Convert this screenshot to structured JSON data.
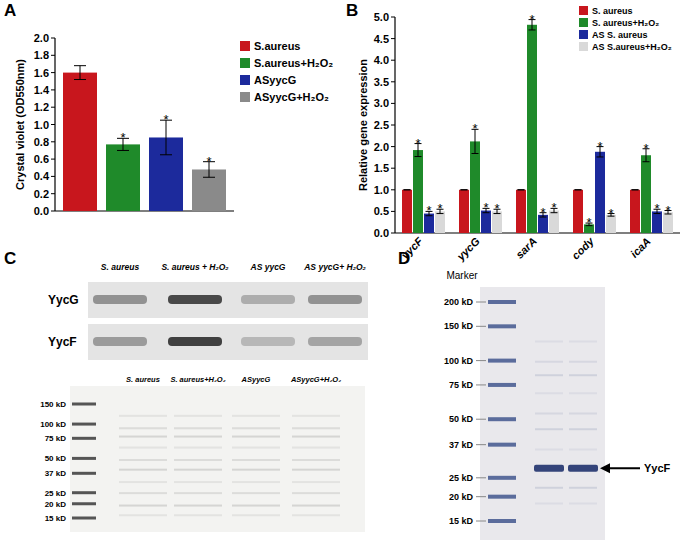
{
  "chart_data": [
    {
      "title": "A",
      "type": "bar",
      "y_label": "Crystal violet (OD550nm)",
      "categories": [
        null
      ],
      "ylim": [
        0,
        2
      ],
      "yticks": [
        {
          "value": 0,
          "label": "0.0"
        },
        0.2,
        0.4,
        0.6,
        0.8,
        {
          "value": 1,
          "label": "1.0"
        },
        1.2,
        1.4,
        1.6,
        1.8,
        {
          "value": 2,
          "label": "2.0"
        }
      ],
      "legend": "right",
      "series": [
        {
          "name": "S.aureus",
          "color": "#c8161d",
          "values": [
            1.6
          ],
          "errors": [
            0.08
          ],
          "annotations": [
            null
          ]
        },
        {
          "name": "S.aureus+H₂O₂",
          "color": "#1f8a2a",
          "values": [
            0.77
          ],
          "errors": [
            0.07
          ],
          "annotations": [
            "*"
          ]
        },
        {
          "name": "ASyycG",
          "color": "#1c2a9c",
          "values": [
            0.85
          ],
          "errors": [
            0.2
          ],
          "annotations": [
            "*"
          ]
        },
        {
          "name": "ASyycG+H₂O₂",
          "color": "#8a8a8a",
          "values": [
            0.48
          ],
          "errors": [
            0.09
          ],
          "annotations": [
            "*"
          ]
        }
      ]
    },
    {
      "title": "B",
      "type": "bar",
      "y_label": "Relative gene expression",
      "categories": [
        "yycF",
        "yycG",
        "sarA",
        "cody",
        "icaA"
      ],
      "ylim": [
        0,
        5
      ],
      "yticks": [
        {
          "value": 0,
          "label": "0.0"
        },
        0.5,
        {
          "value": 1,
          "label": "1.0"
        },
        1.5,
        {
          "value": 2,
          "label": "2.0"
        },
        2.5,
        {
          "value": 3,
          "label": "3.0"
        },
        3.5,
        {
          "value": 4,
          "label": "4.0"
        },
        4.5,
        {
          "value": 5,
          "label": "5.0"
        }
      ],
      "legend": "top-right",
      "series": [
        {
          "name": "S. aureus",
          "color": "#c8161d",
          "values": [
            1,
            1,
            1,
            1,
            1
          ],
          "errors": [
            0,
            0,
            0,
            0,
            0
          ],
          "annotations": [
            null,
            null,
            null,
            null,
            null
          ]
        },
        {
          "name": "S. aureus+H₂O₂",
          "color": "#1f8a2a",
          "values": [
            1.92,
            2.12,
            4.82,
            0.2,
            1.8
          ],
          "errors": [
            0.15,
            0.28,
            0.12,
            0.03,
            0.15
          ],
          "annotations": [
            "*",
            "*",
            "*",
            "*",
            "*"
          ]
        },
        {
          "name": "AS S. aureus",
          "color": "#1c2a9c",
          "values": [
            0.45,
            0.52,
            0.42,
            1.88,
            0.5
          ],
          "errors": [
            0.05,
            0.05,
            0.05,
            0.12,
            0.05
          ],
          "annotations": [
            "*",
            "*",
            "*",
            "*",
            "*"
          ]
        },
        {
          "name": "AS S.aureus+H₂O₂",
          "color": "#d9d9d9",
          "values": [
            0.5,
            0.5,
            0.52,
            0.42,
            0.48
          ],
          "errors": [
            0.05,
            0.05,
            0.05,
            0.03,
            0.04
          ],
          "annotations": [
            "*",
            "*",
            "*",
            "*",
            "*"
          ]
        }
      ]
    }
  ],
  "blot": {
    "title": "C",
    "lanes": [
      "S. aureus",
      "S. aureus + H₂O₂",
      "AS yycG",
      "AS yycG+ H₂O₂"
    ],
    "rows": [
      {
        "label": "YycG",
        "intensities": [
          0.45,
          0.85,
          0.3,
          0.45
        ]
      },
      {
        "label": "YycF",
        "intensities": [
          0.4,
          0.9,
          0.25,
          0.35
        ]
      }
    ]
  },
  "gel_c": {
    "lanes": [
      "S. aureus",
      "S. aureus+H₂O₂",
      "ASyycG",
      "ASyycG+H₂O₂"
    ],
    "marker": [
      {
        "value": 150,
        "label": "150 kD"
      },
      {
        "value": 100,
        "label": "100 kD"
      },
      {
        "value": 75,
        "label": "75 kD"
      },
      {
        "value": 50,
        "label": "50 kD"
      },
      {
        "value": 37,
        "label": "37 kD"
      },
      {
        "value": 25,
        "label": "25 kD"
      },
      {
        "value": 20,
        "label": "20 kD"
      },
      {
        "value": 15,
        "label": "15 kD"
      }
    ]
  },
  "gel_d": {
    "title": "D",
    "marker_title": "Marker",
    "marker": [
      {
        "value": 200,
        "label": "200 kD"
      },
      {
        "value": 150,
        "label": "150 kD"
      },
      {
        "value": 100,
        "label": "100 kD"
      },
      {
        "value": 75,
        "label": "75 kD"
      },
      {
        "value": 50,
        "label": "50 kD"
      },
      {
        "value": 37,
        "label": "37 kD"
      },
      {
        "value": 25,
        "label": "25 kD"
      },
      {
        "value": 20,
        "label": "20 kD"
      },
      {
        "value": 15,
        "label": "15 kD"
      }
    ],
    "band_label": "YycF",
    "band_kd": 28
  }
}
